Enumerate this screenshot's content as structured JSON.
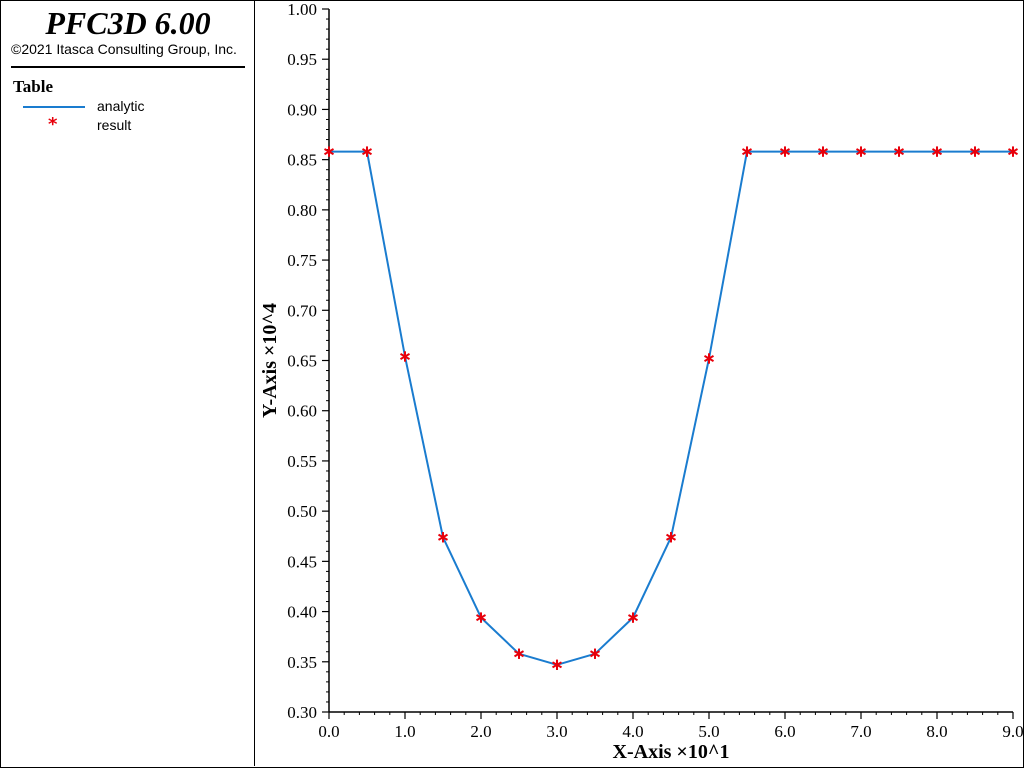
{
  "app": {
    "title": "PFC3D 6.00",
    "copyright": "©2021 Itasca Consulting Group, Inc."
  },
  "legend": {
    "heading": "Table",
    "items": [
      {
        "label": "analytic",
        "kind": "line",
        "color": "#1a7ccf"
      },
      {
        "label": "result",
        "kind": "marker",
        "marker": "*",
        "color": "#e8000b"
      }
    ]
  },
  "chart_data": {
    "type": "line",
    "title": "",
    "xlabel": "X-Axis ×10^1",
    "ylabel": "Y-Axis ×10^4",
    "xlim": [
      0.0,
      9.0
    ],
    "ylim": [
      0.3,
      1.0
    ],
    "x_ticks": [
      "0.0",
      "1.0",
      "2.0",
      "3.0",
      "4.0",
      "5.0",
      "6.0",
      "7.0",
      "8.0",
      "9.0"
    ],
    "y_ticks": [
      "0.30",
      "0.35",
      "0.40",
      "0.45",
      "0.50",
      "0.55",
      "0.60",
      "0.65",
      "0.70",
      "0.75",
      "0.80",
      "0.85",
      "0.90",
      "0.95",
      "1.00"
    ],
    "grid": false,
    "legend_placement": "left panel",
    "series": [
      {
        "name": "analytic",
        "style": "line",
        "color": "#1a7ccf",
        "x": [
          0.0,
          0.5,
          1.0,
          1.5,
          2.0,
          2.5,
          3.0,
          3.5,
          4.0,
          4.5,
          5.0,
          5.5,
          6.0,
          6.5,
          7.0,
          7.5,
          8.0,
          8.5,
          9.0
        ],
        "y": [
          0.858,
          0.858,
          0.654,
          0.474,
          0.394,
          0.358,
          0.347,
          0.358,
          0.394,
          0.474,
          0.652,
          0.858,
          0.858,
          0.858,
          0.858,
          0.858,
          0.858,
          0.858,
          0.858
        ]
      },
      {
        "name": "result",
        "style": "marker",
        "color": "#e8000b",
        "x": [
          0.0,
          0.5,
          1.0,
          1.5,
          2.0,
          2.5,
          3.0,
          3.5,
          4.0,
          4.5,
          5.0,
          5.5,
          6.0,
          6.5,
          7.0,
          7.5,
          8.0,
          8.5,
          9.0
        ],
        "y": [
          0.858,
          0.858,
          0.654,
          0.474,
          0.394,
          0.358,
          0.347,
          0.358,
          0.394,
          0.474,
          0.652,
          0.858,
          0.858,
          0.858,
          0.858,
          0.858,
          0.858,
          0.858,
          0.858
        ]
      }
    ]
  }
}
